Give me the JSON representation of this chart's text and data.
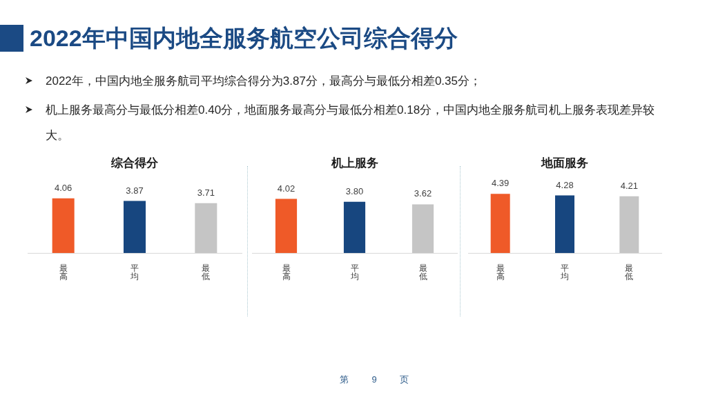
{
  "chart_data": [
    {
      "type": "other",
      "title": "2022年中国内地全服务航空公司综合得分",
      "annotations": [
        "2022年，中国内地全服务航司平均综合得分为3.87分，最高分与最低分相差0.35分；",
        "机上服务最高分与最低分相差0.40分，地面服务最高分与最低分相差0.18分，中国内地全服务航司机上服务表现差异较大。",
        "第 9 页"
      ]
    },
    {
      "type": "bar",
      "title": "综合得分",
      "categories": [
        "最高",
        "平均",
        "最低"
      ],
      "values": [
        4.06,
        3.87,
        3.71
      ],
      "colors": [
        "#ef5a28",
        "#17467f",
        "#c5c5c5"
      ],
      "data_labels": true,
      "tick_labels": "x"
    },
    {
      "type": "bar",
      "title": "机上服务",
      "categories": [
        "最高",
        "平均",
        "最低"
      ],
      "values": [
        4.02,
        3.8,
        3.62
      ],
      "value_labels": [
        "4.02",
        "3.80",
        "3.62"
      ],
      "colors": [
        "#ef5a28",
        "#17467f",
        "#c5c5c5"
      ],
      "tick_labels": "x"
    },
    {
      "type": "bar",
      "title": "地面服务",
      "categories": [
        "最高",
        "平均",
        "最低"
      ],
      "values": [
        4.39,
        4.28,
        4.21
      ],
      "colors": [
        "#ef5a28",
        "#17467f",
        "#c5c5c5"
      ],
      "data_labels": true,
      "tick_labels": "x"
    }
  ]
}
